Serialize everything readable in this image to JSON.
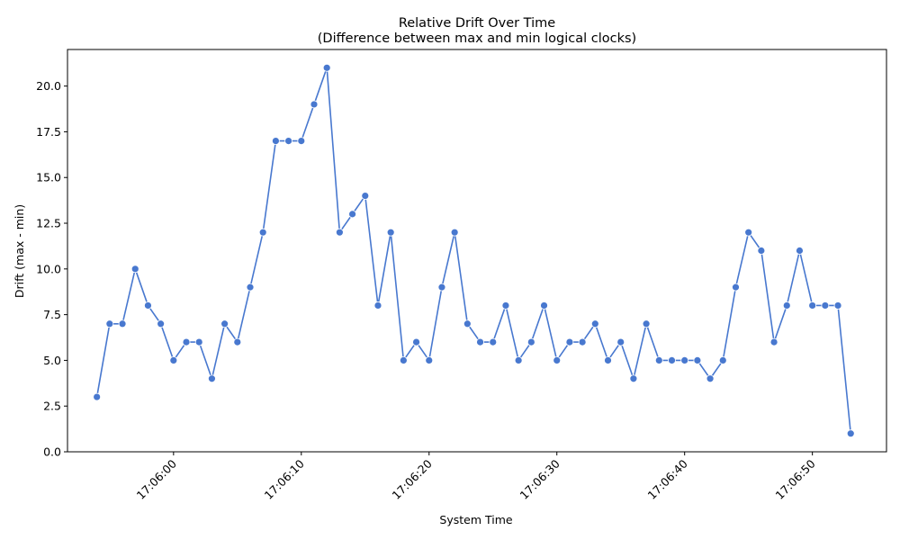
{
  "chart_data": {
    "type": "line",
    "title": "Relative Drift Over Time",
    "subtitle": "(Difference between max and min logical clocks)",
    "xlabel": "System Time",
    "ylabel": "Drift (max - min)",
    "x_start_time": "17:05:54",
    "x_step_seconds": 1,
    "x_range": [
      "17:05:51.7",
      "17:06:55.8"
    ],
    "ylim": [
      0,
      22
    ],
    "x_ticks": [
      "17:06:00",
      "17:06:10",
      "17:06:20",
      "17:06:30",
      "17:06:40",
      "17:06:50"
    ],
    "y_ticks": [
      "0.0",
      "2.5",
      "5.0",
      "7.5",
      "10.0",
      "12.5",
      "15.0",
      "17.5",
      "20.0"
    ],
    "x_tick_rotation": 45,
    "grid": false,
    "legend": "none",
    "line_color": "#4878cf",
    "series": [
      {
        "values": [
          3,
          7,
          7,
          10,
          8,
          7,
          5,
          6,
          6,
          4,
          7,
          6,
          9,
          12,
          17,
          17,
          17,
          19,
          21,
          12,
          13,
          14,
          8,
          12,
          5,
          6,
          5,
          9,
          12,
          7,
          6,
          6,
          8,
          5,
          6,
          8,
          5,
          6,
          6,
          7,
          5,
          6,
          4,
          7,
          5,
          5,
          5,
          5,
          4,
          5,
          9,
          12,
          11,
          6,
          8,
          11,
          8,
          8,
          8,
          1
        ]
      }
    ]
  }
}
